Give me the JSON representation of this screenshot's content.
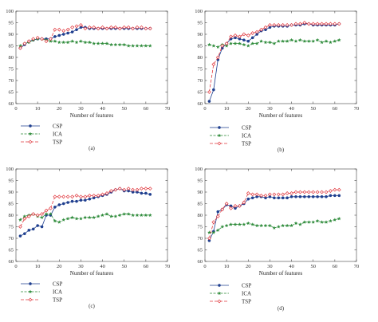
{
  "chart_data": [
    {
      "type": "line",
      "caption": "(a)",
      "xlabel": "Number of features",
      "ylabel": "",
      "xlim": [
        0,
        70
      ],
      "ylim": [
        60,
        100
      ],
      "xticks": [
        0,
        10,
        20,
        30,
        40,
        50,
        60,
        70
      ],
      "yticks": [
        60,
        65,
        70,
        75,
        80,
        85,
        90,
        95,
        100
      ],
      "grid": false,
      "legend": "below-left",
      "x": [
        2,
        4,
        6,
        8,
        10,
        12,
        14,
        16,
        18,
        20,
        22,
        24,
        26,
        28,
        30,
        32,
        34,
        36,
        38,
        40,
        42,
        44,
        46,
        48,
        50,
        52,
        54,
        56,
        58,
        60,
        62
      ],
      "series": [
        {
          "name": "CSP",
          "color": "#1f3f8f",
          "marker": "circle",
          "dash": "",
          "values": [
            84,
            85.5,
            87,
            87.5,
            88,
            88,
            88,
            88,
            89,
            89.5,
            90,
            90.5,
            91,
            92,
            93,
            93,
            92.5,
            92.5,
            92.5,
            92.5,
            92.5,
            92.5,
            92.5,
            92.5,
            92.5,
            92.5,
            92.5,
            92.5,
            92.5,
            92.5,
            92.5
          ]
        },
        {
          "name": "ICA",
          "color": "#2e8b3a",
          "marker": "star",
          "dash": "3,1.5",
          "values": [
            85,
            86,
            86.5,
            87.5,
            88,
            88,
            87.5,
            87,
            87,
            86.5,
            86.5,
            86.5,
            87,
            86.5,
            87,
            86.5,
            86.5,
            86,
            86,
            86,
            86,
            85.5,
            85.5,
            85.5,
            85.5,
            85,
            85,
            85,
            85,
            85,
            85
          ]
        },
        {
          "name": "TSP",
          "color": "#e0383e",
          "marker": "diamond",
          "dash": "4,2",
          "values": [
            84,
            86,
            87,
            88,
            88.5,
            88,
            87,
            88,
            92,
            92,
            91.5,
            92,
            93,
            93.5,
            94,
            92.5,
            93,
            93,
            92.5,
            93,
            92.5,
            93,
            93,
            92.5,
            93,
            93,
            92.5,
            93,
            93,
            92.5,
            92.5
          ]
        }
      ]
    },
    {
      "type": "line",
      "caption": "(b)",
      "xlabel": "Number of features",
      "ylabel": "",
      "xlim": [
        0,
        70
      ],
      "ylim": [
        60,
        100
      ],
      "xticks": [
        0,
        10,
        20,
        30,
        40,
        50,
        60,
        70
      ],
      "yticks": [
        60,
        65,
        70,
        75,
        80,
        85,
        90,
        95,
        100
      ],
      "grid": false,
      "legend": "below-left",
      "x": [
        2,
        4,
        6,
        8,
        10,
        12,
        14,
        16,
        18,
        20,
        22,
        24,
        26,
        28,
        30,
        32,
        34,
        36,
        38,
        40,
        42,
        44,
        46,
        48,
        50,
        52,
        54,
        56,
        58,
        60,
        62
      ],
      "series": [
        {
          "name": "CSP",
          "color": "#1f3f8f",
          "marker": "circle",
          "dash": "",
          "values": [
            61,
            66,
            79,
            84,
            86,
            88,
            88.5,
            88,
            87.5,
            87,
            88.5,
            90,
            91.5,
            92,
            93,
            93.5,
            93.5,
            93.5,
            93.5,
            94,
            94,
            94,
            94.5,
            94.5,
            94,
            94,
            94,
            94,
            94,
            94,
            94.5
          ]
        },
        {
          "name": "ICA",
          "color": "#2e8b3a",
          "marker": "star",
          "dash": "3,1.5",
          "values": [
            85.5,
            85,
            84.5,
            85.5,
            85,
            86,
            86,
            86,
            85.5,
            85,
            86,
            86,
            87,
            86.5,
            86.5,
            86,
            87,
            87,
            87,
            87.5,
            87,
            87.5,
            87,
            87,
            87,
            87.5,
            86.5,
            87,
            86.5,
            87,
            87.5
          ]
        },
        {
          "name": "TSP",
          "color": "#e0383e",
          "marker": "diamond",
          "dash": "4,2",
          "values": [
            65,
            77,
            80,
            85,
            86,
            89,
            89.5,
            89,
            90,
            89.5,
            90.5,
            91,
            92,
            93,
            94,
            94,
            94,
            94,
            94,
            94,
            94.5,
            94.5,
            95,
            94.5,
            94.5,
            94.5,
            94.5,
            94.5,
            94.5,
            94.5,
            94.5
          ]
        }
      ]
    },
    {
      "type": "line",
      "caption": "(c)",
      "xlabel": "Number of features",
      "ylabel": "",
      "xlim": [
        0,
        70
      ],
      "ylim": [
        60,
        100
      ],
      "xticks": [
        0,
        10,
        20,
        30,
        40,
        50,
        60,
        70
      ],
      "yticks": [
        60,
        65,
        70,
        75,
        80,
        85,
        90,
        95,
        100
      ],
      "grid": false,
      "legend": "below-left",
      "x": [
        2,
        4,
        6,
        8,
        10,
        12,
        14,
        16,
        18,
        20,
        22,
        24,
        26,
        28,
        30,
        32,
        34,
        36,
        38,
        40,
        42,
        44,
        46,
        48,
        50,
        52,
        54,
        56,
        58,
        60,
        62
      ],
      "series": [
        {
          "name": "CSP",
          "color": "#1f3f8f",
          "marker": "circle",
          "dash": "",
          "values": [
            71,
            72,
            73.5,
            74,
            75.5,
            75,
            80,
            80,
            83.5,
            84.5,
            85,
            85.5,
            86,
            86,
            86.5,
            86.5,
            87,
            87.5,
            88,
            88.5,
            89,
            90,
            91,
            91.5,
            90.5,
            90.5,
            90,
            90,
            89.5,
            89.5,
            89
          ]
        },
        {
          "name": "ICA",
          "color": "#2e8b3a",
          "marker": "star",
          "dash": "3,1.5",
          "values": [
            78,
            79.5,
            80,
            80.5,
            79.5,
            79,
            80.5,
            80.5,
            77.5,
            77,
            78,
            78.5,
            79,
            78.5,
            78.5,
            79,
            79,
            79,
            79.5,
            80,
            80.5,
            79.5,
            79.5,
            80,
            80.5,
            80.5,
            80,
            80,
            80,
            80,
            80
          ]
        },
        {
          "name": "TSP",
          "color": "#e0383e",
          "marker": "diamond",
          "dash": "4,2",
          "values": [
            75,
            78.5,
            79.5,
            80.5,
            80,
            80.5,
            82,
            83,
            88,
            88,
            88,
            88,
            88,
            88.5,
            88,
            88,
            88.5,
            88.5,
            88.5,
            89,
            89.5,
            90.5,
            91,
            91.5,
            91,
            91.5,
            91,
            91,
            91.5,
            91.5,
            91.5
          ]
        }
      ]
    },
    {
      "type": "line",
      "caption": "(d)",
      "xlabel": "Number of features",
      "ylabel": "",
      "xlim": [
        0,
        70
      ],
      "ylim": [
        60,
        100
      ],
      "xticks": [
        0,
        10,
        20,
        30,
        40,
        50,
        60,
        70
      ],
      "yticks": [
        60,
        65,
        70,
        75,
        80,
        85,
        90,
        95,
        100
      ],
      "grid": false,
      "legend": "below-left",
      "x": [
        2,
        4,
        6,
        8,
        10,
        12,
        14,
        16,
        18,
        20,
        22,
        24,
        26,
        28,
        30,
        32,
        34,
        36,
        38,
        40,
        42,
        44,
        46,
        48,
        50,
        52,
        54,
        56,
        58,
        60,
        62
      ],
      "series": [
        {
          "name": "CSP",
          "color": "#1f3f8f",
          "marker": "circle",
          "dash": "",
          "values": [
            69,
            73,
            81.5,
            82.5,
            84.5,
            84,
            83,
            84,
            85,
            87,
            87.5,
            88,
            88,
            87.5,
            88,
            87.5,
            87.5,
            87.5,
            87.5,
            88,
            88,
            88,
            88,
            88,
            88,
            88,
            88,
            88,
            88.5,
            88.5,
            88.5
          ]
        },
        {
          "name": "ICA",
          "color": "#2e8b3a",
          "marker": "star",
          "dash": "3,1.5",
          "values": [
            72.5,
            72.5,
            73.5,
            75,
            75.5,
            76,
            76,
            76,
            76,
            76.5,
            76,
            75.5,
            75.5,
            75.5,
            75.5,
            74.5,
            75,
            75.5,
            75.5,
            75.5,
            76.5,
            76,
            77,
            77,
            77,
            77.5,
            77,
            77,
            77.5,
            78,
            78.5
          ]
        },
        {
          "name": "TSP",
          "color": "#e0383e",
          "marker": "diamond",
          "dash": "4,2",
          "values": [
            70,
            77,
            79.5,
            82.5,
            85,
            83,
            84,
            84,
            85.5,
            89.5,
            89,
            89,
            88.5,
            88.5,
            89,
            89,
            89,
            89,
            89.5,
            89.5,
            90,
            90,
            90,
            90,
            90,
            90,
            90,
            90,
            90.5,
            91,
            91
          ]
        }
      ]
    }
  ]
}
